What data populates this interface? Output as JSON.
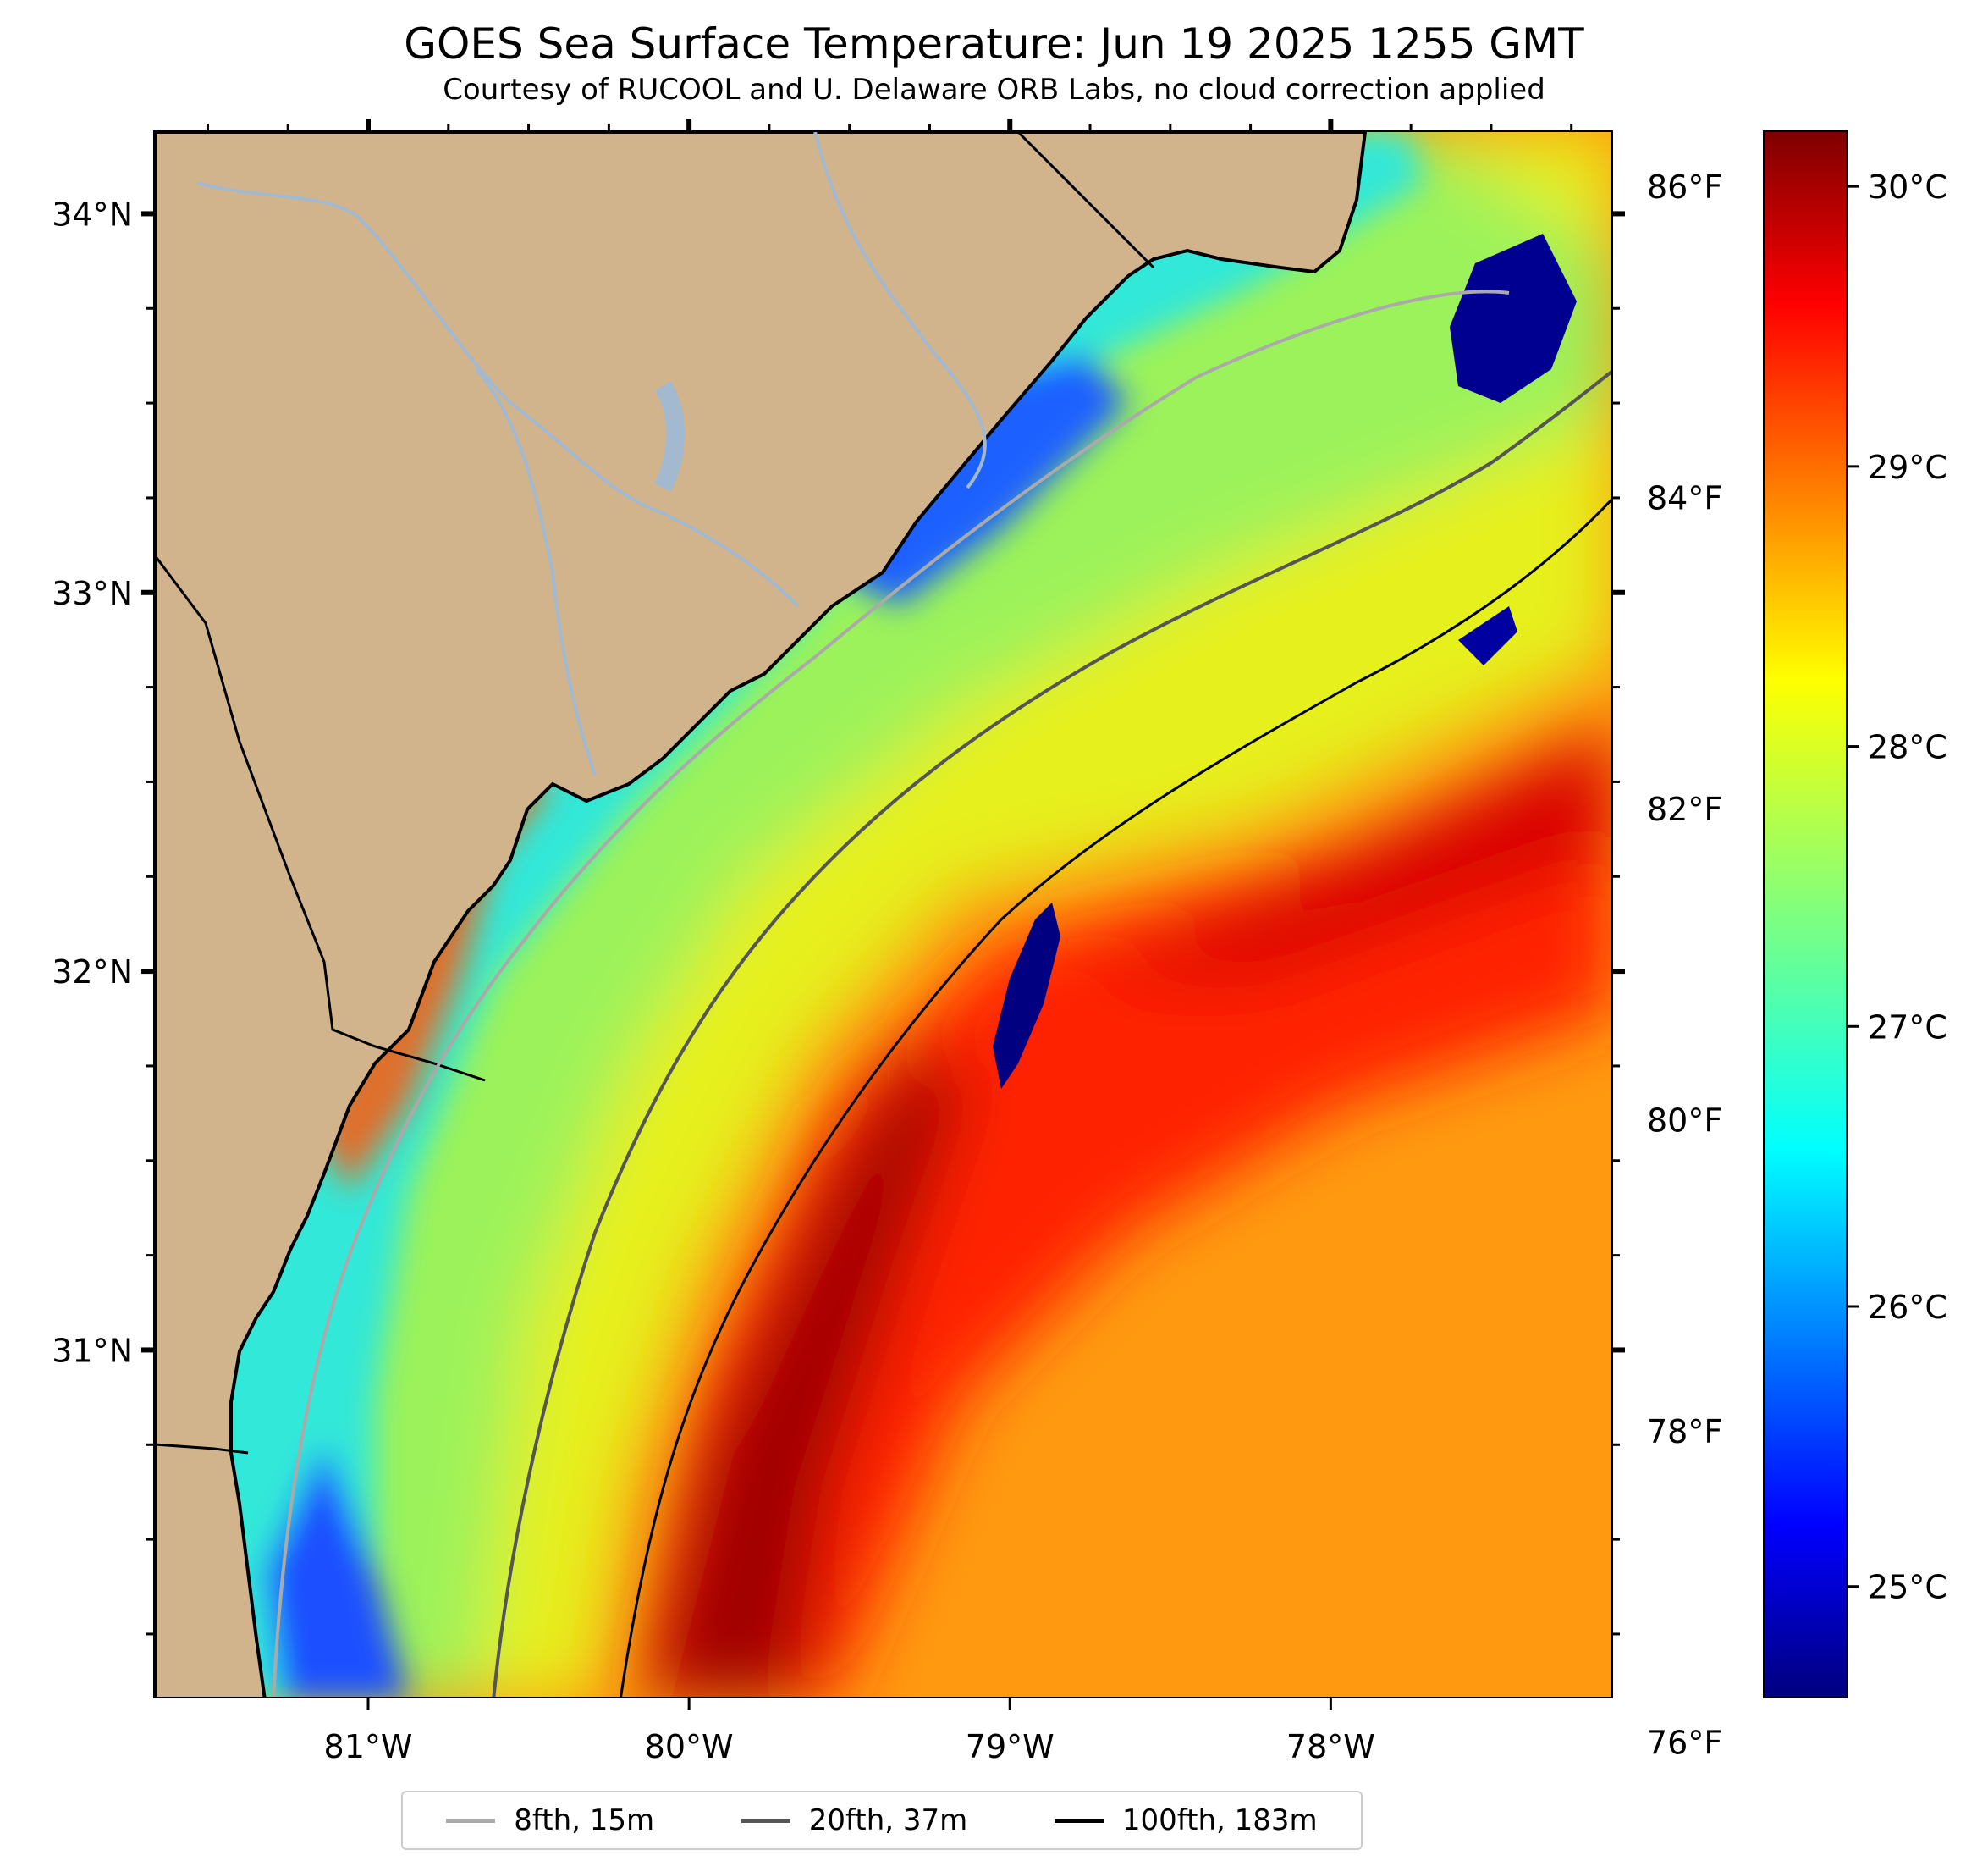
{
  "title": "GOES Sea Surface Temperature: Jun 19 2025 1255 GMT",
  "subtitle": "Courtesy of RUCOOL and U. Delaware ORB Labs, no cloud correction applied",
  "map": {
    "lon_range": [
      -81.67,
      -77.12
    ],
    "lat_range": [
      30.08,
      34.22
    ],
    "lon_ticks": [
      {
        "value": -81,
        "label": "81°W"
      },
      {
        "value": -80,
        "label": "80°W"
      },
      {
        "value": -79,
        "label": "79°W"
      },
      {
        "value": -78,
        "label": "78°W"
      }
    ],
    "lat_ticks": [
      {
        "value": 31,
        "label": "31°N"
      },
      {
        "value": 32,
        "label": "32°N"
      },
      {
        "value": 33,
        "label": "33°N"
      },
      {
        "value": 34,
        "label": "34°N"
      }
    ],
    "land_color": "#d2b48c",
    "coast_color": "#000000",
    "river_color": "#a3b9cf"
  },
  "fahrenheit_ticks": [
    "86°F",
    "84°F",
    "82°F",
    "80°F",
    "78°F",
    "76°F"
  ],
  "colorbar": {
    "range_c": [
      24.6,
      30.2
    ],
    "ticks": [
      "30°C",
      "29°C",
      "28°C",
      "27°C",
      "26°C",
      "25°C"
    ],
    "colormap": "jet"
  },
  "legend": [
    {
      "label": "8fth, 15m",
      "color": "#aaaaaa"
    },
    {
      "label": "20fth, 37m",
      "color": "#555555"
    },
    {
      "label": "100fth, 183m",
      "color": "#000000"
    }
  ]
}
